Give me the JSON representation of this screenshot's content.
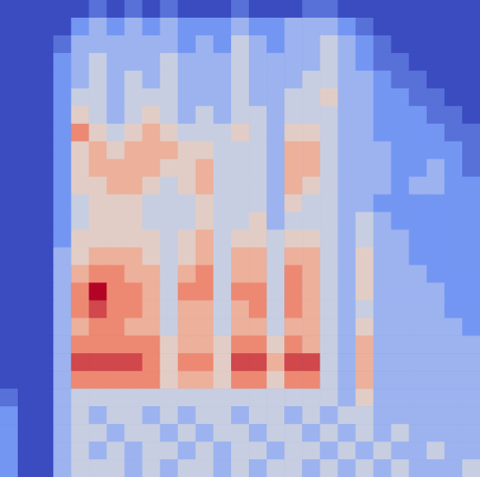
{
  "chart_data": {
    "type": "heatmap",
    "tick_labels": false,
    "zlim": [
      0,
      9
    ],
    "cells": [
      [
        0,
        0,
        0,
        0,
        0,
        1,
        0,
        1,
        0,
        1,
        0,
        0,
        0,
        1,
        0,
        0,
        0,
        1,
        1,
        0,
        0,
        0,
        0,
        0,
        0,
        0,
        0
      ],
      [
        0,
        0,
        0,
        0,
        2,
        3,
        2,
        3,
        2,
        3,
        2,
        2,
        2,
        3,
        2,
        2,
        3,
        3,
        3,
        2,
        1,
        0,
        0,
        0,
        0,
        0,
        0
      ],
      [
        0,
        0,
        0,
        1,
        3,
        3,
        3,
        3,
        3,
        3,
        2,
        3,
        2,
        4,
        3,
        2,
        3,
        3,
        4,
        3,
        2,
        1,
        0,
        0,
        0,
        0,
        0
      ],
      [
        0,
        0,
        0,
        2,
        3,
        4,
        3,
        3,
        3,
        4,
        3,
        3,
        3,
        4,
        3,
        3,
        3,
        3,
        4,
        3,
        2,
        1,
        1,
        0,
        0,
        0,
        0
      ],
      [
        0,
        0,
        0,
        2,
        3,
        4,
        3,
        4,
        3,
        4,
        3,
        3,
        3,
        4,
        3,
        3,
        3,
        4,
        4,
        3,
        3,
        2,
        1,
        1,
        0,
        0,
        0
      ],
      [
        0,
        0,
        0,
        2,
        4,
        4,
        3,
        4,
        4,
        4,
        3,
        3,
        3,
        4,
        3,
        3,
        4,
        4,
        5,
        3,
        3,
        2,
        2,
        1,
        1,
        0,
        0
      ],
      [
        0,
        0,
        0,
        2,
        5,
        4,
        3,
        4,
        5,
        4,
        3,
        4,
        3,
        4,
        4,
        3,
        4,
        4,
        4,
        3,
        3,
        2,
        2,
        2,
        1,
        1,
        0
      ],
      [
        0,
        0,
        0,
        2,
        7,
        5,
        4,
        5,
        6,
        5,
        4,
        4,
        4,
        5,
        4,
        3,
        5,
        5,
        4,
        3,
        3,
        2,
        2,
        2,
        2,
        1,
        1
      ],
      [
        0,
        0,
        0,
        2,
        5,
        6,
        5,
        6,
        6,
        6,
        5,
        5,
        4,
        4,
        4,
        3,
        6,
        6,
        4,
        3,
        3,
        3,
        2,
        2,
        2,
        2,
        1
      ],
      [
        0,
        0,
        0,
        2,
        5,
        6,
        6,
        6,
        6,
        5,
        5,
        6,
        4,
        4,
        4,
        3,
        6,
        6,
        4,
        3,
        3,
        3,
        2,
        2,
        3,
        2,
        1
      ],
      [
        0,
        0,
        0,
        2,
        5,
        5,
        6,
        6,
        5,
        4,
        5,
        6,
        4,
        4,
        4,
        3,
        6,
        5,
        4,
        3,
        3,
        3,
        2,
        3,
        3,
        2,
        2
      ],
      [
        0,
        0,
        0,
        2,
        4,
        5,
        5,
        5,
        4,
        4,
        4,
        5,
        4,
        4,
        4,
        3,
        5,
        4,
        4,
        3,
        3,
        2,
        2,
        2,
        2,
        2,
        2
      ],
      [
        0,
        0,
        0,
        2,
        4,
        5,
        5,
        5,
        4,
        4,
        4,
        5,
        4,
        4,
        5,
        3,
        4,
        4,
        4,
        3,
        4,
        3,
        2,
        2,
        2,
        2,
        2
      ],
      [
        0,
        0,
        0,
        2,
        5,
        5,
        5,
        5,
        5,
        4,
        5,
        6,
        4,
        5,
        5,
        4,
        5,
        5,
        4,
        3,
        4,
        3,
        3,
        2,
        2,
        2,
        2
      ],
      [
        0,
        0,
        0,
        3,
        5,
        6,
        6,
        6,
        5,
        4,
        5,
        6,
        4,
        6,
        6,
        4,
        6,
        6,
        4,
        3,
        5,
        3,
        3,
        2,
        2,
        2,
        2
      ],
      [
        0,
        0,
        0,
        3,
        6,
        7,
        7,
        6,
        6,
        4,
        6,
        7,
        4,
        6,
        6,
        4,
        7,
        6,
        4,
        3,
        5,
        3,
        3,
        3,
        2,
        2,
        2
      ],
      [
        0,
        0,
        0,
        3,
        7,
        9,
        7,
        7,
        6,
        4,
        7,
        7,
        4,
        7,
        7,
        4,
        7,
        6,
        4,
        3,
        5,
        3,
        3,
        3,
        3,
        2,
        2
      ],
      [
        0,
        0,
        0,
        3,
        7,
        8,
        7,
        7,
        6,
        4,
        6,
        6,
        4,
        6,
        7,
        4,
        7,
        6,
        4,
        3,
        4,
        3,
        3,
        3,
        3,
        2,
        2
      ],
      [
        0,
        0,
        0,
        3,
        6,
        7,
        7,
        6,
        6,
        4,
        6,
        6,
        4,
        6,
        6,
        4,
        6,
        6,
        4,
        3,
        5,
        3,
        3,
        3,
        3,
        3,
        2
      ],
      [
        0,
        0,
        0,
        3,
        7,
        7,
        7,
        7,
        7,
        5,
        6,
        6,
        5,
        7,
        7,
        5,
        7,
        6,
        4,
        3,
        6,
        3,
        3,
        3,
        3,
        3,
        3
      ],
      [
        0,
        0,
        0,
        3,
        8,
        8,
        8,
        8,
        7,
        5,
        7,
        7,
        5,
        8,
        8,
        6,
        8,
        8,
        4,
        3,
        6,
        3,
        3,
        3,
        3,
        3,
        3
      ],
      [
        0,
        0,
        0,
        3,
        7,
        7,
        7,
        7,
        7,
        5,
        6,
        6,
        5,
        7,
        7,
        5,
        7,
        7,
        4,
        3,
        6,
        3,
        3,
        3,
        3,
        3,
        3
      ],
      [
        1,
        0,
        0,
        3,
        4,
        4,
        4,
        4,
        4,
        4,
        4,
        4,
        4,
        4,
        4,
        4,
        4,
        4,
        4,
        3,
        5,
        3,
        3,
        3,
        3,
        3,
        3
      ],
      [
        2,
        0,
        0,
        3,
        4,
        3,
        4,
        4,
        3,
        4,
        3,
        4,
        4,
        3,
        4,
        4,
        3,
        4,
        3,
        4,
        4,
        3,
        3,
        3,
        3,
        3,
        3
      ],
      [
        2,
        0,
        0,
        3,
        4,
        4,
        3,
        4,
        4,
        3,
        4,
        3,
        4,
        4,
        3,
        4,
        4,
        3,
        4,
        3,
        4,
        3,
        4,
        3,
        3,
        3,
        3
      ],
      [
        2,
        0,
        0,
        3,
        4,
        3,
        4,
        3,
        4,
        4,
        3,
        4,
        3,
        4,
        4,
        3,
        4,
        4,
        3,
        4,
        3,
        4,
        3,
        3,
        4,
        3,
        3
      ],
      [
        2,
        0,
        0,
        3,
        4,
        4,
        4,
        3,
        4,
        3,
        4,
        4,
        3,
        4,
        3,
        4,
        4,
        3,
        4,
        3,
        4,
        3,
        4,
        3,
        3,
        3,
        4
      ]
    ]
  }
}
